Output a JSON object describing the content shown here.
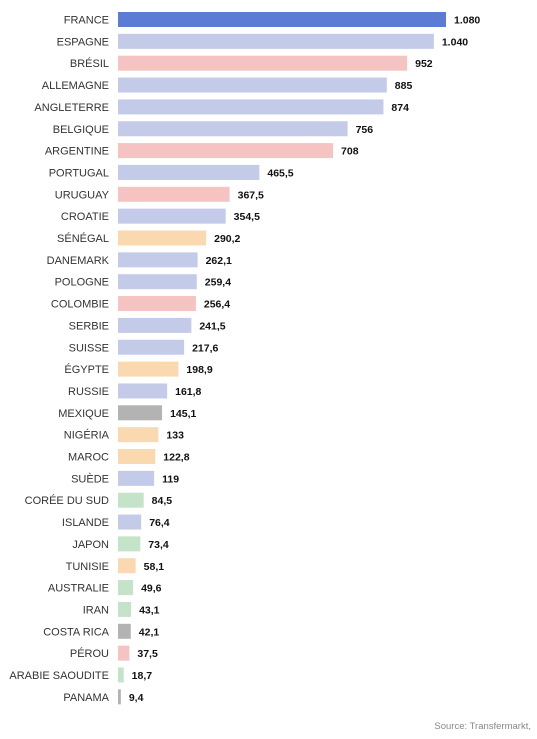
{
  "source": "Source: Transfermarkt,",
  "colors": {
    "europe_highlight": "#5b7bd5",
    "europe": "#c3cbe8",
    "south_america": "#f6c3c3",
    "africa": "#fbd9b0",
    "concacaf": "#b3b3b3",
    "asia": "#c5e3c8"
  },
  "chart_data": {
    "type": "bar",
    "orientation": "horizontal",
    "categories": [
      "FRANCE",
      "ESPAGNE",
      "BRÉSIL",
      "ALLEMAGNE",
      "ANGLETERRE",
      "BELGIQUE",
      "ARGENTINE",
      "PORTUGAL",
      "URUGUAY",
      "CROATIE",
      "SÉNÉGAL",
      "DANEMARK",
      "POLOGNE",
      "COLOMBIE",
      "SERBIE",
      "SUISSE",
      "ÉGYPTE",
      "RUSSIE",
      "MEXIQUE",
      "NIGÉRIA",
      "MAROC",
      "SUÈDE",
      "CORÉE DU SUD",
      "ISLANDE",
      "JAPON",
      "TUNISIE",
      "AUSTRALIE",
      "IRAN",
      "COSTA RICA",
      "PÉROU",
      "ARABIE SAOUDITE",
      "PANAMA"
    ],
    "values": [
      1080,
      1040,
      952,
      885,
      874,
      756,
      708,
      465.5,
      367.5,
      354.5,
      290.2,
      262.1,
      259.4,
      256.4,
      241.5,
      217.6,
      198.9,
      161.8,
      145.1,
      133,
      122.8,
      119,
      84.5,
      76.4,
      73.4,
      58.1,
      49.6,
      43.1,
      42.1,
      37.5,
      18.7,
      9.4
    ],
    "value_labels": [
      "1.080",
      "1.040",
      "952",
      "885",
      "874",
      "756",
      "708",
      "465,5",
      "367,5",
      "354,5",
      "290,2",
      "262,1",
      "259,4",
      "256,4",
      "241,5",
      "217,6",
      "198,9",
      "161,8",
      "145,1",
      "133",
      "122,8",
      "119",
      "84,5",
      "76,4",
      "73,4",
      "58,1",
      "49,6",
      "43,1",
      "42,1",
      "37,5",
      "18,7",
      "9,4"
    ],
    "groups": [
      "europe_highlight",
      "europe",
      "south_america",
      "europe",
      "europe",
      "europe",
      "south_america",
      "europe",
      "south_america",
      "europe",
      "africa",
      "europe",
      "europe",
      "south_america",
      "europe",
      "europe",
      "africa",
      "europe",
      "concacaf",
      "africa",
      "africa",
      "europe",
      "asia",
      "europe",
      "asia",
      "africa",
      "asia",
      "asia",
      "concacaf",
      "south_america",
      "asia",
      "concacaf"
    ],
    "xlim": [
      0,
      1080
    ],
    "grid": false,
    "legend": "none"
  }
}
